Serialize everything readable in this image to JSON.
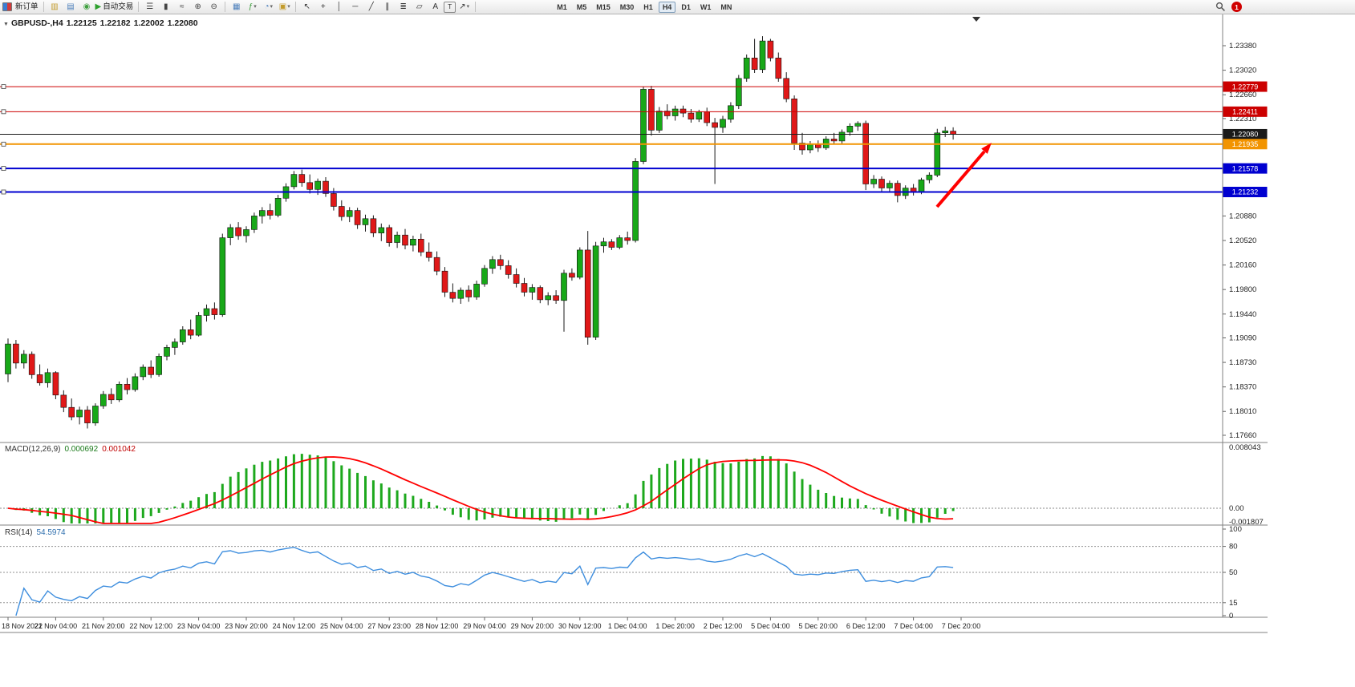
{
  "toolbar": {
    "caret_glyph": "▾",
    "items": [
      {
        "name": "new-order-button",
        "type": "order",
        "label": "新订单"
      },
      {
        "sep": true
      },
      {
        "name": "market-watch-button",
        "glyph": "▥",
        "color": "#C39B2A"
      },
      {
        "name": "data-window-button",
        "glyph": "▤",
        "color": "#4A7EBB"
      },
      {
        "name": "navigator-button",
        "glyph": "◉",
        "color": "#3FA03F"
      },
      {
        "name": "autotrading-button",
        "glyph": "▶",
        "color": "#2EA02E",
        "label": "自动交易"
      },
      {
        "sep": true
      },
      {
        "name": "bar-chart-button",
        "glyph": "☰",
        "color": "#444444"
      },
      {
        "name": "candlestick-chart-button",
        "glyph": "▮",
        "color": "#444444"
      },
      {
        "name": "line-chart-button",
        "glyph": "≈",
        "color": "#444444"
      },
      {
        "name": "zoom-in-button",
        "glyph": "⊕",
        "color": "#444444"
      },
      {
        "name": "zoom-out-button",
        "glyph": "⊖",
        "color": "#444444"
      },
      {
        "sep": true
      },
      {
        "name": "tile-windows-button",
        "glyph": "▦",
        "color": "#4A7EBB"
      },
      {
        "name": "indicators-button",
        "glyph": "ƒ",
        "color": "#3FA03F",
        "dropdown": true
      },
      {
        "name": "periods-button",
        "glyph": "◔",
        "color": "#4A7EBB",
        "dropdown": true
      },
      {
        "name": "templates-button",
        "glyph": "▣",
        "color": "#C39B2A",
        "dropdown": true
      },
      {
        "sep": true
      },
      {
        "name": "cursor-button",
        "glyph": "↖",
        "color": "#333333"
      },
      {
        "name": "crosshair-button",
        "glyph": "+",
        "color": "#333333"
      },
      {
        "name": "vertical-line-button",
        "glyph": "│",
        "color": "#333333"
      },
      {
        "name": "horizontal-line-button",
        "glyph": "─",
        "color": "#333333"
      },
      {
        "name": "trendline-button",
        "glyph": "╱",
        "color": "#333333"
      },
      {
        "name": "channel-button",
        "glyph": "∥",
        "color": "#333333"
      },
      {
        "name": "fibonacci-button",
        "glyph": "≣",
        "color": "#333333"
      },
      {
        "name": "shapes-button",
        "glyph": "▱",
        "color": "#333333"
      },
      {
        "name": "text-button",
        "glyph": "A",
        "color": "#333333"
      },
      {
        "name": "text-label-button",
        "glyph": "T",
        "color": "#333333",
        "boxed": true
      },
      {
        "name": "arrows-button",
        "glyph": "↗",
        "color": "#333333",
        "dropdown": true
      },
      {
        "sep": true
      }
    ],
    "timeframes": {
      "labels": [
        "M1",
        "M5",
        "M15",
        "M30",
        "H1",
        "H4",
        "D1",
        "W1",
        "MN"
      ],
      "active": "H4"
    },
    "notification_count": "1"
  },
  "chart": {
    "symbol_label": "GBPUSD-,H4",
    "ohlc": {
      "open": "1.22125",
      "high": "1.22182",
      "low": "1.22002",
      "close": "1.22080"
    },
    "colors": {
      "bull": "#18A818",
      "bear": "#E01818",
      "wick": "#1a1a1a",
      "arrow": "#FF0000"
    },
    "price_axis": [
      "1.23380",
      "1.23020",
      "1.22660",
      "1.22310",
      "1.20880",
      "1.20520",
      "1.20160",
      "1.19800",
      "1.19440",
      "1.19090",
      "1.18730",
      "1.18370",
      "1.18010",
      "1.17660"
    ],
    "time_axis": [
      "18 Nov 2022",
      "21 Nov 04:00",
      "21 Nov 20:00",
      "22 Nov 12:00",
      "23 Nov 04:00",
      "23 Nov 20:00",
      "24 Nov 12:00",
      "25 Nov 04:00",
      "27 Nov 23:00",
      "28 Nov 12:00",
      "29 Nov 04:00",
      "29 Nov 20:00",
      "30 Nov 12:00",
      "1 Dec 04:00",
      "1 Dec 20:00",
      "2 Dec 12:00",
      "5 Dec 04:00",
      "5 Dec 20:00",
      "6 Dec 12:00",
      "7 Dec 04:00",
      "7 Dec 20:00"
    ],
    "hlines": [
      {
        "price": 1.22779,
        "label": "1.22779",
        "color": "#CC0000",
        "width": 1,
        "handle": true
      },
      {
        "price": 1.22411,
        "label": "1.22411",
        "color": "#CC0000",
        "width": 1,
        "handle": true
      },
      {
        "price": 1.2208,
        "label": "1.22080",
        "color": "#1A1A1A",
        "width": 1,
        "handle": false
      },
      {
        "price": 1.21935,
        "label": "1.21935",
        "color": "#F29400",
        "width": 2,
        "handle": true
      },
      {
        "price": 1.21578,
        "label": "1.21578",
        "color": "#0000D0",
        "width": 2,
        "handle": true
      },
      {
        "price": 1.21232,
        "label": "1.21232",
        "color": "#0000D0",
        "width": 2,
        "handle": true
      }
    ]
  },
  "indicators": {
    "macd": {
      "label": "MACD(12,26,9)",
      "value_main": "0.000692",
      "value_signal": "0.001042",
      "axis": [
        "0.008043",
        "0.00",
        "-0.001807"
      ],
      "axis_max": 0.008043,
      "axis_min": -0.001807,
      "histogram_color": "#1DA81D",
      "signal_color": "#FF0000"
    },
    "rsi": {
      "label": "RSI(14)",
      "value": "54.5974",
      "line_color": "#3E8EDE",
      "levels": [
        80,
        50,
        15
      ],
      "axis": [
        "100",
        "80",
        "50",
        "15",
        "0"
      ],
      "axis_values": [
        100,
        80,
        50,
        15,
        0
      ]
    }
  },
  "chart_data": {
    "type": "candlestick",
    "symbol": "GBPUSD-",
    "timeframe": "H4",
    "ylim": [
      1.17554,
      1.23792
    ],
    "candles": [
      [
        1.1856,
        1.1908,
        1.1844,
        1.19
      ],
      [
        1.19,
        1.1906,
        1.1864,
        1.1872
      ],
      [
        1.1872,
        1.1891,
        1.1864,
        1.1885
      ],
      [
        1.1885,
        1.1889,
        1.1849,
        1.1855
      ],
      [
        1.1855,
        1.187,
        1.1839,
        1.1843
      ],
      [
        1.1843,
        1.1864,
        1.1836,
        1.1858
      ],
      [
        1.1858,
        1.186,
        1.1819,
        1.1825
      ],
      [
        1.1825,
        1.1832,
        1.18,
        1.1807
      ],
      [
        1.1807,
        1.182,
        1.1788,
        1.1793
      ],
      [
        1.1793,
        1.1808,
        1.1782,
        1.1803
      ],
      [
        1.1803,
        1.1809,
        1.1776,
        1.1784
      ],
      [
        1.1784,
        1.1813,
        1.178,
        1.1809
      ],
      [
        1.1809,
        1.1831,
        1.1805,
        1.1826
      ],
      [
        1.1826,
        1.1835,
        1.1812,
        1.1818
      ],
      [
        1.1818,
        1.1845,
        1.1815,
        1.1841
      ],
      [
        1.1841,
        1.185,
        1.1826,
        1.1833
      ],
      [
        1.1833,
        1.1857,
        1.183,
        1.1852
      ],
      [
        1.1852,
        1.187,
        1.1847,
        1.1866
      ],
      [
        1.1866,
        1.1876,
        1.185,
        1.1855
      ],
      [
        1.1855,
        1.1886,
        1.1852,
        1.1882
      ],
      [
        1.1882,
        1.1899,
        1.1876,
        1.1895
      ],
      [
        1.1895,
        1.1908,
        1.1884,
        1.1903
      ],
      [
        1.1903,
        1.1926,
        1.1899,
        1.1921
      ],
      [
        1.1921,
        1.1936,
        1.1907,
        1.1913
      ],
      [
        1.1913,
        1.1947,
        1.1911,
        1.1942
      ],
      [
        1.1942,
        1.1958,
        1.1933,
        1.1952
      ],
      [
        1.1952,
        1.1961,
        1.1936,
        1.1943
      ],
      [
        1.1943,
        1.2062,
        1.194,
        1.2056
      ],
      [
        1.2056,
        1.2076,
        1.2045,
        1.2071
      ],
      [
        1.2071,
        1.2079,
        1.2053,
        1.2059
      ],
      [
        1.2059,
        1.2073,
        1.2049,
        1.2068
      ],
      [
        1.2068,
        1.2093,
        1.2063,
        1.2088
      ],
      [
        1.2088,
        1.2101,
        1.2077,
        1.2096
      ],
      [
        1.2096,
        1.2106,
        1.2083,
        1.2089
      ],
      [
        1.2089,
        1.2119,
        1.2086,
        1.2114
      ],
      [
        1.2114,
        1.2136,
        1.2109,
        1.2131
      ],
      [
        1.2131,
        1.2154,
        1.2127,
        1.2149
      ],
      [
        1.2149,
        1.2156,
        1.2131,
        1.2137
      ],
      [
        1.2137,
        1.2149,
        1.2121,
        1.2127
      ],
      [
        1.2127,
        1.2143,
        1.2119,
        1.2139
      ],
      [
        1.2139,
        1.2145,
        1.2116,
        1.2121
      ],
      [
        1.2121,
        1.2129,
        1.2096,
        1.2102
      ],
      [
        1.2102,
        1.2111,
        1.2081,
        1.2087
      ],
      [
        1.2087,
        1.2101,
        1.2079,
        1.2096
      ],
      [
        1.2096,
        1.21,
        1.2069,
        1.2075
      ],
      [
        1.2075,
        1.209,
        1.2065,
        1.2084
      ],
      [
        1.2084,
        1.2089,
        1.2057,
        1.2063
      ],
      [
        1.2063,
        1.2077,
        1.2051,
        1.2071
      ],
      [
        1.2071,
        1.2075,
        1.2043,
        1.2049
      ],
      [
        1.2049,
        1.2065,
        1.2041,
        1.206
      ],
      [
        1.206,
        1.2069,
        1.2039,
        1.2045
      ],
      [
        1.2045,
        1.2059,
        1.2036,
        1.2054
      ],
      [
        1.2054,
        1.2062,
        1.2029,
        1.2035
      ],
      [
        1.2035,
        1.2049,
        1.2021,
        1.2027
      ],
      [
        1.2027,
        1.2036,
        1.2001,
        1.2007
      ],
      [
        1.2007,
        1.2013,
        1.1969,
        1.1976
      ],
      [
        1.1976,
        1.1989,
        1.1961,
        1.1967
      ],
      [
        1.1967,
        1.1983,
        1.1959,
        1.1979
      ],
      [
        1.1979,
        1.1986,
        1.1962,
        1.1969
      ],
      [
        1.1969,
        1.1993,
        1.1965,
        1.1988
      ],
      [
        1.1988,
        1.2016,
        1.1984,
        1.2011
      ],
      [
        1.2011,
        1.2029,
        1.2003,
        1.2024
      ],
      [
        1.2024,
        1.2031,
        1.2009,
        1.2015
      ],
      [
        1.2015,
        1.2023,
        1.1996,
        1.2002
      ],
      [
        1.2002,
        1.2011,
        1.1983,
        1.1989
      ],
      [
        1.1989,
        1.1997,
        1.197,
        1.1976
      ],
      [
        1.1976,
        1.1988,
        1.1965,
        1.1983
      ],
      [
        1.1983,
        1.1986,
        1.196,
        1.1965
      ],
      [
        1.1965,
        1.1976,
        1.1957,
        1.1971
      ],
      [
        1.1971,
        1.1979,
        1.1959,
        1.1964
      ],
      [
        1.1964,
        1.2009,
        1.1918,
        1.2004
      ],
      [
        1.2004,
        1.2011,
        1.1993,
        1.1998
      ],
      [
        1.1998,
        1.2042,
        1.1995,
        1.2038
      ],
      [
        1.2038,
        1.2066,
        1.1899,
        1.191
      ],
      [
        1.191,
        1.205,
        1.1906,
        1.2044
      ],
      [
        1.2044,
        1.2056,
        1.2034,
        1.205
      ],
      [
        1.205,
        1.2054,
        1.2038,
        1.2042
      ],
      [
        1.2042,
        1.206,
        1.2039,
        1.2056
      ],
      [
        1.2056,
        1.2065,
        1.2046,
        1.2052
      ],
      [
        1.2052,
        1.2173,
        1.2049,
        1.2168
      ],
      [
        1.2168,
        1.2278,
        1.2164,
        1.2274
      ],
      [
        1.2274,
        1.2279,
        1.2206,
        1.2214
      ],
      [
        1.2214,
        1.2248,
        1.221,
        1.2242
      ],
      [
        1.2242,
        1.2252,
        1.223,
        1.2235
      ],
      [
        1.2235,
        1.225,
        1.2228,
        1.2245
      ],
      [
        1.2245,
        1.225,
        1.2233,
        1.2239
      ],
      [
        1.2239,
        1.2245,
        1.2225,
        1.223
      ],
      [
        1.223,
        1.2244,
        1.2226,
        1.2241
      ],
      [
        1.2241,
        1.2247,
        1.222,
        1.2225
      ],
      [
        1.2225,
        1.2232,
        1.2135,
        1.2218
      ],
      [
        1.2218,
        1.2235,
        1.221,
        1.223
      ],
      [
        1.223,
        1.2255,
        1.2225,
        1.225
      ],
      [
        1.225,
        1.2295,
        1.2245,
        1.229
      ],
      [
        1.229,
        1.2325,
        1.2285,
        1.232
      ],
      [
        1.232,
        1.2348,
        1.2298,
        1.2303
      ],
      [
        1.2303,
        1.2352,
        1.2298,
        1.2345
      ],
      [
        1.2345,
        1.2348,
        1.2315,
        1.232
      ],
      [
        1.232,
        1.2328,
        1.2285,
        1.229
      ],
      [
        1.229,
        1.2299,
        1.2255,
        1.226
      ],
      [
        1.226,
        1.2265,
        1.2185,
        1.2195
      ],
      [
        1.2195,
        1.221,
        1.2178,
        1.2185
      ],
      [
        1.2185,
        1.2198,
        1.218,
        1.2193
      ],
      [
        1.2193,
        1.2199,
        1.2182,
        1.2188
      ],
      [
        1.2188,
        1.2205,
        1.2185,
        1.2201
      ],
      [
        1.2201,
        1.221,
        1.2193,
        1.2198
      ],
      [
        1.2198,
        1.2215,
        1.2194,
        1.2211
      ],
      [
        1.2211,
        1.2224,
        1.2206,
        1.222
      ],
      [
        1.222,
        1.2227,
        1.2213,
        1.2224
      ],
      [
        1.2224,
        1.2228,
        1.2126,
        1.2135
      ],
      [
        1.2135,
        1.2148,
        1.2129,
        1.2142
      ],
      [
        1.2142,
        1.2146,
        1.2123,
        1.2129
      ],
      [
        1.2129,
        1.214,
        1.2124,
        1.2136
      ],
      [
        1.2136,
        1.214,
        1.2108,
        1.2118
      ],
      [
        1.2118,
        1.2133,
        1.2113,
        1.2129
      ],
      [
        1.2129,
        1.2135,
        1.2118,
        1.2123
      ],
      [
        1.2123,
        1.2144,
        1.212,
        1.2141
      ],
      [
        1.2141,
        1.2152,
        1.2136,
        1.2148
      ],
      [
        1.2148,
        1.2216,
        1.2145,
        1.221
      ],
      [
        1.221,
        1.2219,
        1.2204,
        1.2213
      ],
      [
        1.22125,
        1.22182,
        1.22002,
        1.2208
      ]
    ]
  }
}
